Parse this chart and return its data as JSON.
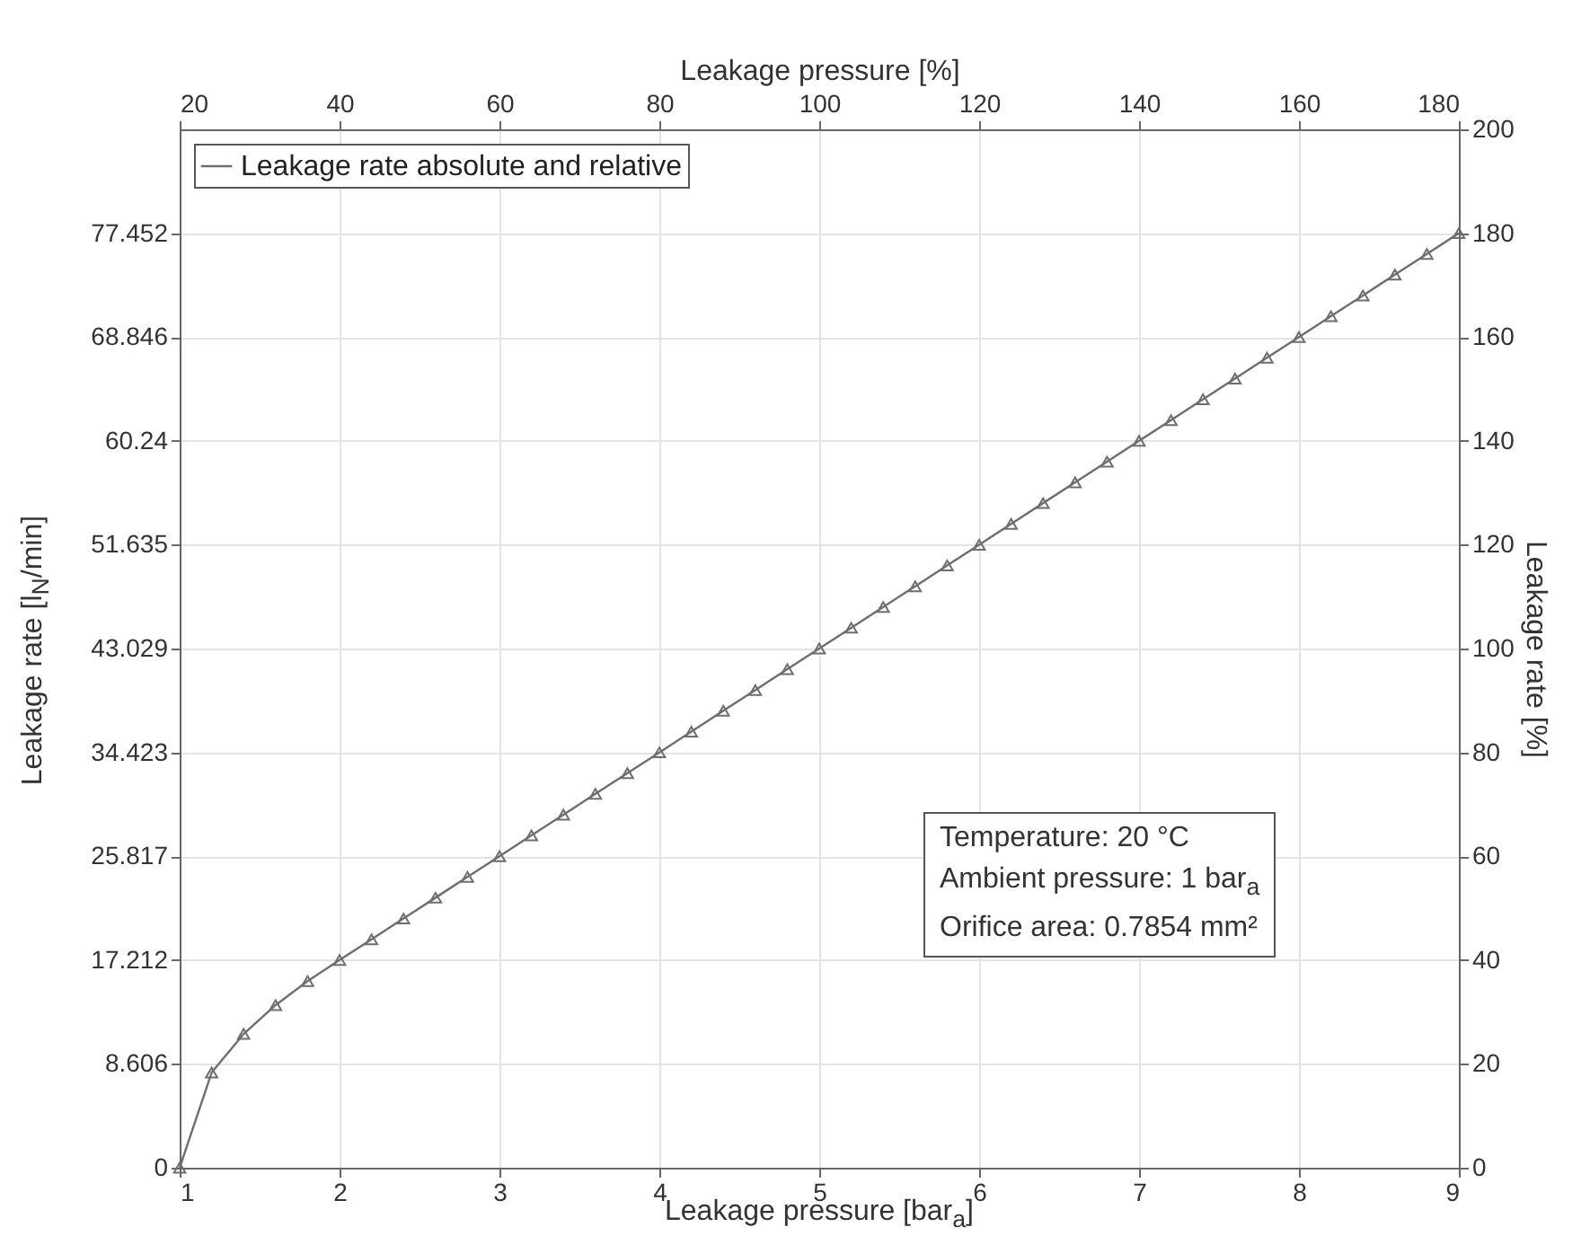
{
  "chart_data": {
    "type": "line",
    "xlabel": "Leakage pressure [bar$_{a}$]",
    "ylabel": "Leakage rate [l$_{N}$/min]",
    "x2label": "Leakage pressure [%]",
    "y2label": "Leakage rate [%]",
    "x": [
      1,
      1.2,
      1.4,
      1.6,
      1.8,
      2,
      2.2,
      2.4,
      2.6,
      2.8,
      3,
      3.2,
      3.4,
      3.6,
      3.8,
      4,
      4.2,
      4.4,
      4.6,
      4.8,
      5,
      5.2,
      5.4,
      5.6,
      5.8,
      6,
      6.2,
      6.4,
      6.6,
      6.8,
      7,
      7.2,
      7.4,
      7.6,
      7.8,
      8,
      8.2,
      8.4,
      8.6,
      8.8,
      9
    ],
    "series": [
      {
        "name": "Leakage rate absolute and relative",
        "color": "#6e6e6e",
        "values": [
          0,
          7.89,
          11.09,
          13.48,
          15.46,
          17.21,
          18.93,
          20.65,
          22.38,
          24.1,
          25.82,
          27.54,
          29.26,
          30.98,
          32.7,
          34.42,
          36.14,
          37.87,
          39.59,
          41.31,
          43.03,
          44.75,
          46.47,
          48.19,
          49.91,
          51.63,
          53.36,
          55.08,
          56.8,
          58.52,
          60.24,
          61.96,
          63.68,
          65.4,
          67.13,
          68.85,
          70.57,
          72.29,
          74.01,
          75.73,
          77.45
        ]
      }
    ],
    "xlim": [
      1,
      9
    ],
    "xticks": [
      1,
      2,
      3,
      4,
      5,
      6,
      7,
      8,
      9
    ],
    "ylim": [
      0,
      86.058
    ],
    "yticks": [
      0,
      8.606,
      17.212,
      25.817,
      34.423,
      43.029,
      51.635,
      60.24,
      68.846,
      77.452
    ],
    "x2lim": [
      20,
      180
    ],
    "x2ticks": [
      20,
      40,
      60,
      80,
      100,
      120,
      140,
      160,
      180
    ],
    "y2lim": [
      0,
      200
    ],
    "y2ticks": [
      0,
      20,
      40,
      60,
      80,
      100,
      120,
      140,
      160,
      180,
      200
    ],
    "annotations": [
      "Temperature: 20 °C",
      "Ambient pressure:  1 bar$_{a}$",
      "Orifice area: 0.7854 mm²"
    ],
    "grid": true,
    "legend": "top left",
    "marker": "triangle",
    "line_style": "solid"
  }
}
